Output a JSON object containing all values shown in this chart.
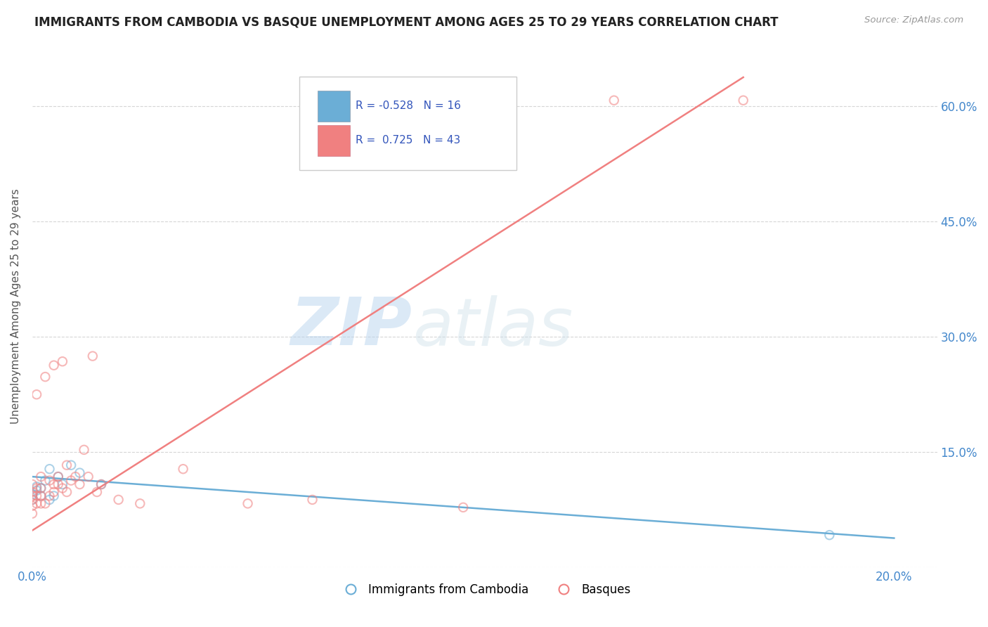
{
  "title": "IMMIGRANTS FROM CAMBODIA VS BASQUE UNEMPLOYMENT AMONG AGES 25 TO 29 YEARS CORRELATION CHART",
  "source": "Source: ZipAtlas.com",
  "ylabel": "Unemployment Among Ages 25 to 29 years",
  "watermark_zip": "ZIP",
  "watermark_atlas": "atlas",
  "xlim": [
    0.0,
    0.21
  ],
  "ylim": [
    0.0,
    0.68
  ],
  "xticks": [
    0.0,
    0.05,
    0.1,
    0.15,
    0.2
  ],
  "xticklabels": [
    "0.0%",
    "",
    "",
    "",
    "20.0%"
  ],
  "yticks": [
    0.0,
    0.15,
    0.3,
    0.45,
    0.6
  ],
  "yticklabels": [
    "",
    "15.0%",
    "30.0%",
    "45.0%",
    "60.0%"
  ],
  "legend_r1": "-0.528",
  "legend_n1": "16",
  "legend_r2": "0.725",
  "legend_n2": "43",
  "legend_label1": "Immigrants from Cambodia",
  "legend_label2": "Basques",
  "cambodia_scatter_x": [
    0.0,
    0.0,
    0.001,
    0.001,
    0.002,
    0.002,
    0.003,
    0.004,
    0.004,
    0.005,
    0.006,
    0.007,
    0.009,
    0.011,
    0.016,
    0.185
  ],
  "cambodia_scatter_y": [
    0.088,
    0.095,
    0.1,
    0.105,
    0.093,
    0.103,
    0.113,
    0.088,
    0.128,
    0.093,
    0.118,
    0.108,
    0.133,
    0.123,
    0.108,
    0.042
  ],
  "basque_scatter_x": [
    0.0,
    0.0,
    0.0,
    0.0,
    0.0,
    0.0,
    0.001,
    0.001,
    0.001,
    0.001,
    0.002,
    0.002,
    0.002,
    0.002,
    0.003,
    0.003,
    0.004,
    0.004,
    0.005,
    0.005,
    0.005,
    0.006,
    0.006,
    0.007,
    0.007,
    0.008,
    0.008,
    0.009,
    0.01,
    0.011,
    0.012,
    0.013,
    0.014,
    0.015,
    0.016,
    0.02,
    0.025,
    0.035,
    0.05,
    0.065,
    0.1,
    0.135,
    0.165
  ],
  "basque_scatter_y": [
    0.07,
    0.08,
    0.088,
    0.093,
    0.098,
    0.108,
    0.083,
    0.093,
    0.103,
    0.225,
    0.083,
    0.093,
    0.103,
    0.118,
    0.083,
    0.248,
    0.093,
    0.113,
    0.098,
    0.263,
    0.108,
    0.108,
    0.118,
    0.103,
    0.268,
    0.098,
    0.133,
    0.113,
    0.118,
    0.108,
    0.153,
    0.118,
    0.275,
    0.098,
    0.108,
    0.088,
    0.083,
    0.128,
    0.083,
    0.088,
    0.078,
    0.608,
    0.608
  ],
  "cambodia_line_x": [
    0.0,
    0.2
  ],
  "cambodia_line_y": [
    0.118,
    0.038
  ],
  "basque_line_x": [
    0.0,
    0.165
  ],
  "basque_line_y": [
    0.048,
    0.638
  ],
  "scatter_alpha": 0.55,
  "scatter_size": 80,
  "line_width": 1.8,
  "cambodia_color": "#6baed6",
  "basque_color": "#f08080",
  "grid_color": "#cccccc",
  "title_color": "#222222",
  "axis_tick_color": "#4488cc",
  "source_color": "#999999",
  "ylabel_color": "#555555"
}
